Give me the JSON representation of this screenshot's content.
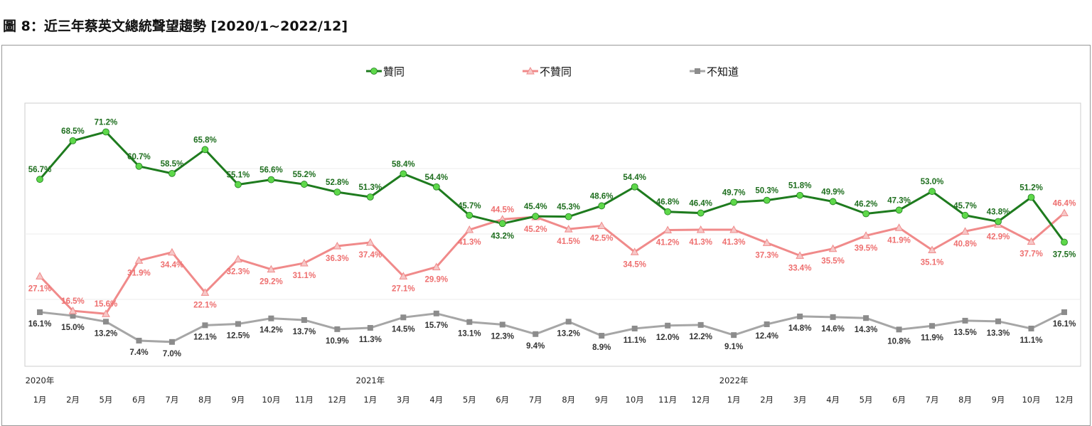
{
  "title": "圖 8：近三年蔡英文總統聲望趨勢  [2020/1~2022/12]",
  "chart_data": {
    "type": "line",
    "title": "圖 8：近三年蔡英文總統聲望趨勢  [2020/1~2022/12]",
    "legend_position": "top",
    "grid": true,
    "ylim": [
      0,
      80
    ],
    "year_labels": [
      {
        "index": 0,
        "label": "2020年"
      },
      {
        "index": 10,
        "label": "2021年"
      },
      {
        "index": 21,
        "label": "2022年"
      }
    ],
    "categories": [
      "1月",
      "2月",
      "5月",
      "6月",
      "7月",
      "8月",
      "9月",
      "10月",
      "11月",
      "12月",
      "1月",
      "3月",
      "4月",
      "5月",
      "6月",
      "7月",
      "8月",
      "9月",
      "10月",
      "11月",
      "12月",
      "1月",
      "2月",
      "3月",
      "4月",
      "5月",
      "6月",
      "7月",
      "8月",
      "9月",
      "10月",
      "12月"
    ],
    "series": [
      {
        "name": "贊同",
        "color": "#1e7b1e",
        "marker_color": "#5ed84a",
        "marker": "circle",
        "values": [
          56.7,
          68.5,
          71.2,
          60.7,
          58.5,
          65.8,
          55.1,
          56.6,
          55.2,
          52.8,
          51.3,
          58.4,
          54.4,
          45.7,
          43.2,
          45.4,
          45.3,
          48.6,
          54.4,
          46.8,
          46.4,
          49.7,
          50.3,
          51.8,
          49.9,
          46.2,
          47.3,
          53.0,
          45.7,
          43.8,
          51.2,
          37.5
        ]
      },
      {
        "name": "不贊同",
        "color": "#f08a8a",
        "marker_color": "#f6c8c8",
        "marker": "triangle",
        "values": [
          27.1,
          16.5,
          15.6,
          31.9,
          34.4,
          22.1,
          32.3,
          29.2,
          31.1,
          36.3,
          37.4,
          27.1,
          29.9,
          41.3,
          44.5,
          45.2,
          41.5,
          42.5,
          34.5,
          41.2,
          41.3,
          41.3,
          37.3,
          33.4,
          35.5,
          39.5,
          41.9,
          35.1,
          40.8,
          42.9,
          37.7,
          46.4
        ]
      },
      {
        "name": "不知道",
        "color": "#a6a6a6",
        "marker_color": "#8c8c8c",
        "marker": "square",
        "values": [
          16.1,
          15.0,
          13.2,
          7.4,
          7.0,
          12.1,
          12.5,
          14.2,
          13.7,
          10.9,
          11.3,
          14.5,
          15.7,
          13.1,
          12.3,
          9.4,
          13.2,
          8.9,
          11.1,
          12.0,
          12.2,
          9.1,
          12.4,
          14.8,
          14.6,
          14.3,
          10.8,
          11.9,
          13.5,
          13.3,
          11.1,
          16.1
        ]
      }
    ]
  }
}
